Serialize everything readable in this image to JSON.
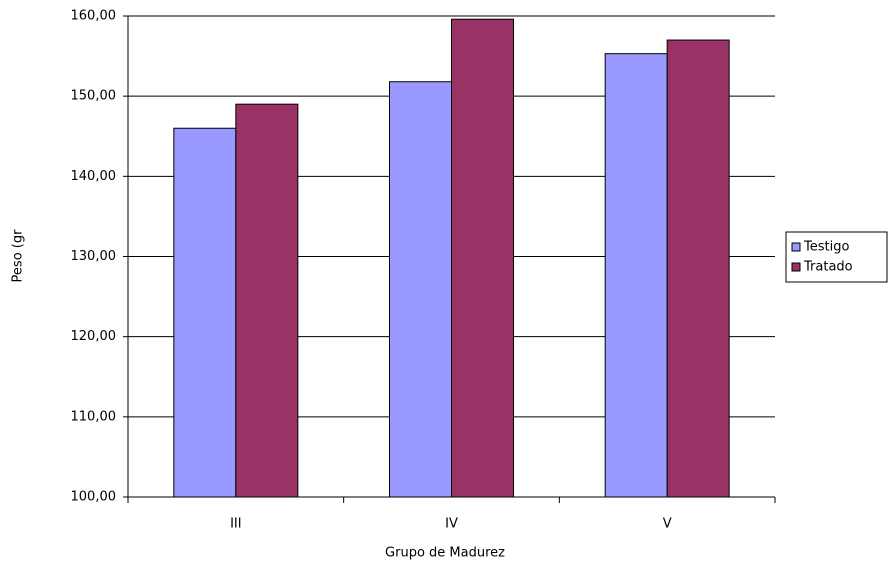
{
  "chart_data": {
    "type": "bar",
    "x_label": "Grupo de Madurez",
    "y_label": "Peso (gr",
    "categories": [
      "III",
      "IV",
      "V"
    ],
    "series": [
      {
        "name": "Testigo",
        "color": "#9999ff",
        "values": [
          146.0,
          151.8,
          155.3
        ]
      },
      {
        "name": "Tratado",
        "color": "#993366",
        "values": [
          149.0,
          159.6,
          157.0
        ]
      }
    ],
    "ylim": [
      100,
      160
    ],
    "yticks": [
      {
        "value": 100,
        "label": "100,00"
      },
      {
        "value": 110,
        "label": "110,00"
      },
      {
        "value": 120,
        "label": "120,00"
      },
      {
        "value": 130,
        "label": "130,00"
      },
      {
        "value": 140,
        "label": "140,00"
      },
      {
        "value": 150,
        "label": "150,00"
      },
      {
        "value": 160,
        "label": "160,00"
      }
    ],
    "grid": true,
    "legend": "right"
  }
}
